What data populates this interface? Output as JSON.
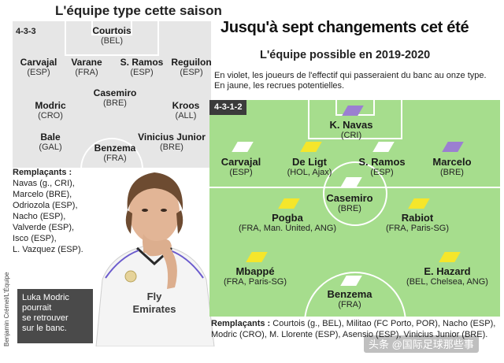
{
  "left": {
    "title": "L'équipe type cette saison",
    "formation": "4-3-3",
    "players": [
      {
        "name": "Courtois",
        "country": "(BEL)"
      },
      {
        "name": "Carvajal",
        "country": "(ESP)"
      },
      {
        "name": "Varane",
        "country": "(FRA)"
      },
      {
        "name": "S. Ramos",
        "country": "(ESP)"
      },
      {
        "name": "Reguilon",
        "country": "(ESP)"
      },
      {
        "name": "Casemiro",
        "country": "(BRE)"
      },
      {
        "name": "Modric",
        "country": "(CRO)"
      },
      {
        "name": "Kroos",
        "country": "(ALL)"
      },
      {
        "name": "Bale",
        "country": "(GAL)"
      },
      {
        "name": "Benzema",
        "country": "(FRA)"
      },
      {
        "name": "Vinicius Junior",
        "country": "(BRE)"
      }
    ],
    "subs_heading": "Remplaçants :",
    "subs": [
      "Navas (g., CRI),",
      "Marcelo (BRE),",
      "Odriozola (ESP),",
      "Nacho (ESP),",
      "Valverde (ESP),",
      "Isco (ESP),",
      "L. Vazquez (ESP)."
    ]
  },
  "caption": [
    "Luka Modric",
    "pourrait",
    "se retrouver",
    "sur le banc."
  ],
  "credit": "Benjamin Crémel/L'Équipe",
  "right": {
    "title": "Jusqu'à sept changements cet été",
    "subtitle": "L'équipe possible en 2019-2020",
    "description": "En violet, les joueurs de l'effectif qui passeraient du banc au onze type. En jaune, les recrues potentielles.",
    "formation": "4-3-1-2",
    "players": [
      {
        "name": "K. Navas",
        "country": "(CRI)",
        "badge": "violet"
      },
      {
        "name": "Carvajal",
        "country": "(ESP)",
        "badge": "white"
      },
      {
        "name": "De Ligt",
        "country": "(HOL, Ajax)",
        "badge": "yellow"
      },
      {
        "name": "S. Ramos",
        "country": "(ESP)",
        "badge": "white"
      },
      {
        "name": "Marcelo",
        "country": "(BRE)",
        "badge": "violet"
      },
      {
        "name": "Casemiro",
        "country": "(BRE)",
        "badge": "white"
      },
      {
        "name": "Pogba",
        "country": "(FRA, Man. United, ANG)",
        "badge": "yellow"
      },
      {
        "name": "Rabiot",
        "country": "(FRA, Paris-SG)",
        "badge": "yellow"
      },
      {
        "name": "Mbappé",
        "country": "(FRA, Paris-SG)",
        "badge": "yellow"
      },
      {
        "name": "E. Hazard",
        "country": "(BEL, Chelsea, ANG)",
        "badge": "yellow"
      },
      {
        "name": "Benzema",
        "country": "(FRA)",
        "badge": "white"
      }
    ],
    "subs_heading": "Remplaçants :",
    "subs": "Courtois (g., BEL), Militao (FC Porto, POR), Nacho (ESP), Modric (CRO), M. Llorente (ESP), Asensio (ESP), Vinicius Junior (BRE)."
  },
  "colors": {
    "violet": "#9b7fd1",
    "yellow": "#f5e62b",
    "white": "#ffffff",
    "pitch_green": "#a6dd8d",
    "pitch_grey": "#e6e6e6"
  },
  "watermark": "头条 @国际足球那些事"
}
